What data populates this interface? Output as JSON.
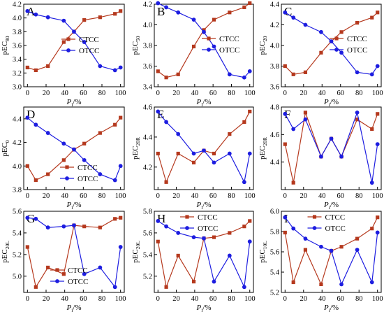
{
  "colors": {
    "ctcc": "#b5391e",
    "otcc": "#1d1de0",
    "axis": "#000000"
  },
  "chart_data": [
    {
      "letter": "A",
      "type": "line",
      "ylabel_main": "pEC",
      "ylabel_sub": "80",
      "xlabel_main": "P",
      "xlabel_sub": "i",
      "xlabel_unit": "/%",
      "xlim": [
        -4,
        104
      ],
      "xticks": [
        0,
        20,
        40,
        60,
        80,
        100
      ],
      "ylim": [
        3.0,
        4.2
      ],
      "yticks": [
        "3.0",
        "3.2",
        "3.4",
        "3.6",
        "3.8",
        "4.0",
        "4.2"
      ],
      "legend": "center-left",
      "x": [
        0,
        9,
        22,
        39,
        50,
        61,
        78,
        94,
        100
      ],
      "series": [
        {
          "name": "CTCC",
          "values": [
            3.28,
            3.24,
            3.3,
            3.65,
            3.8,
            3.97,
            4.01,
            4.06,
            4.1
          ]
        },
        {
          "name": "OTCC",
          "values": [
            4.1,
            4.05,
            4.01,
            3.96,
            3.8,
            3.65,
            3.3,
            3.24,
            3.28
          ]
        }
      ]
    },
    {
      "letter": "B",
      "type": "line",
      "ylabel_main": "pEC",
      "ylabel_sub": "50",
      "xlabel_main": "P",
      "xlabel_sub": "i",
      "xlabel_unit": "/%",
      "xlim": [
        -4,
        104
      ],
      "xticks": [
        0,
        20,
        40,
        60,
        80,
        100
      ],
      "ylim": [
        3.4,
        4.2
      ],
      "yticks": [
        "3.4",
        "3.6",
        "3.8",
        "4.0",
        "4.2"
      ],
      "legend": "center-right",
      "x": [
        0,
        9,
        22,
        39,
        50,
        61,
        78,
        94,
        100
      ],
      "series": [
        {
          "name": "CTCC",
          "values": [
            3.55,
            3.49,
            3.52,
            3.79,
            3.95,
            4.05,
            4.12,
            4.17,
            4.21
          ]
        },
        {
          "name": "OTCC",
          "values": [
            4.21,
            4.17,
            4.12,
            4.05,
            3.93,
            3.79,
            3.52,
            3.49,
            3.55
          ]
        }
      ]
    },
    {
      "letter": "C",
      "type": "line",
      "ylabel_main": "pEC",
      "ylabel_sub": "20",
      "xlabel_main": "P",
      "xlabel_sub": "i",
      "xlabel_unit": "/%",
      "xlim": [
        -4,
        104
      ],
      "xticks": [
        0,
        20,
        40,
        60,
        80,
        100
      ],
      "ylim": [
        3.6,
        4.4
      ],
      "yticks": [
        "3.6",
        "3.8",
        "4.0",
        "4.2",
        "4.4"
      ],
      "legend": "center-right",
      "x": [
        0,
        9,
        22,
        39,
        50,
        61,
        78,
        94,
        100
      ],
      "series": [
        {
          "name": "CTCC",
          "values": [
            3.8,
            3.72,
            3.74,
            3.93,
            4.04,
            4.13,
            4.22,
            4.27,
            4.32
          ]
        },
        {
          "name": "OTCC",
          "values": [
            4.32,
            4.27,
            4.2,
            4.13,
            4.04,
            3.93,
            3.74,
            3.72,
            3.8
          ]
        }
      ]
    },
    {
      "letter": "D",
      "type": "line",
      "ylabel_main": "pEC",
      "ylabel_sub": "0",
      "xlabel_main": "P",
      "xlabel_sub": "i",
      "xlabel_unit": "/%",
      "xlim": [
        -4,
        104
      ],
      "xticks": [
        0,
        20,
        40,
        60,
        80,
        100
      ],
      "ylim": [
        3.8,
        4.5
      ],
      "yticks": [
        "3.8",
        "4.0",
        "4.2",
        "4.4"
      ],
      "legend": "bottom-left",
      "x": [
        0,
        9,
        22,
        39,
        50,
        61,
        78,
        94,
        100
      ],
      "series": [
        {
          "name": "CTCC",
          "values": [
            4.0,
            3.88,
            3.93,
            4.05,
            4.14,
            4.19,
            4.28,
            4.35,
            4.41
          ]
        },
        {
          "name": "OTCC",
          "values": [
            4.41,
            4.35,
            4.28,
            4.19,
            4.14,
            4.05,
            3.93,
            3.88,
            4.0
          ]
        }
      ]
    },
    {
      "letter": "E",
      "type": "line",
      "ylabel_main": "pEC",
      "ylabel_sub": "20R",
      "xlabel_main": "P",
      "xlabel_sub": "i",
      "xlabel_unit": "/%",
      "xlim": [
        -4,
        104
      ],
      "xticks": [
        0,
        20,
        40,
        60,
        80,
        100
      ],
      "ylim": [
        4.05,
        4.6
      ],
      "yticks": [
        "4.2",
        "4.4",
        "4.6"
      ],
      "legend": "none",
      "x": [
        0,
        9,
        22,
        39,
        50,
        61,
        78,
        94,
        100
      ],
      "series": [
        {
          "name": "CTCC",
          "values": [
            4.29,
            4.1,
            4.29,
            4.23,
            4.31,
            4.29,
            4.42,
            4.5,
            4.57
          ]
        },
        {
          "name": "OTCC",
          "values": [
            4.57,
            4.5,
            4.42,
            4.29,
            4.31,
            4.23,
            4.29,
            4.1,
            4.29
          ]
        }
      ]
    },
    {
      "letter": "F",
      "type": "line",
      "ylabel_main": "pEC",
      "ylabel_sub": "20R",
      "xlabel_main": "P",
      "xlabel_sub": "i",
      "xlabel_unit": "/%",
      "xlim": [
        -4,
        104
      ],
      "xticks": [
        0,
        20,
        40,
        60,
        80,
        100
      ],
      "ylim": [
        4.2,
        4.8
      ],
      "yticks": [
        "4.4",
        "4.6",
        "4.8"
      ],
      "legend": "none",
      "x": [
        0,
        9,
        22,
        39,
        50,
        61,
        78,
        94,
        100
      ],
      "series": [
        {
          "name": "CTCC",
          "values": [
            4.53,
            4.25,
            4.76,
            4.44,
            4.57,
            4.44,
            4.71,
            4.64,
            4.75
          ]
        },
        {
          "name": "OTCC",
          "values": [
            4.75,
            4.64,
            4.71,
            4.44,
            4.57,
            4.44,
            4.76,
            4.25,
            4.53
          ]
        }
      ]
    },
    {
      "letter": "G",
      "type": "line",
      "ylabel_main": "pEC",
      "ylabel_sub": "20L",
      "xlabel_main": "P",
      "xlabel_sub": "i",
      "xlabel_unit": "/%",
      "xlim": [
        -4,
        104
      ],
      "xticks": [
        0,
        20,
        40,
        60,
        80,
        100
      ],
      "ylim": [
        4.85,
        5.6
      ],
      "yticks": [
        "5.0",
        "5.2",
        "5.4",
        "5.6"
      ],
      "legend": "bottom-center",
      "x": [
        0,
        9,
        22,
        39,
        50,
        61,
        78,
        94,
        100
      ],
      "series": [
        {
          "name": "CTCC",
          "values": [
            5.27,
            4.9,
            5.08,
            5.02,
            5.47,
            5.46,
            5.45,
            5.53,
            5.54
          ]
        },
        {
          "name": "OTCC",
          "values": [
            5.54,
            5.53,
            5.45,
            5.46,
            5.47,
            5.02,
            5.08,
            4.9,
            5.27
          ]
        }
      ]
    },
    {
      "letter": "H",
      "type": "line",
      "ylabel_main": "pEC",
      "ylabel_sub": "20L",
      "xlabel_main": "P",
      "xlabel_sub": "i",
      "xlabel_unit": "/%",
      "xlim": [
        -4,
        104
      ],
      "xticks": [
        0,
        20,
        40,
        60,
        80,
        100
      ],
      "ylim": [
        5.05,
        5.8
      ],
      "yticks": [
        "5.2",
        "5.4",
        "5.6",
        "5.8"
      ],
      "legend": "top-center",
      "x": [
        0,
        9,
        22,
        39,
        50,
        61,
        78,
        94,
        100
      ],
      "series": [
        {
          "name": "CTCC",
          "values": [
            5.52,
            5.1,
            5.39,
            5.15,
            5.55,
            5.56,
            5.6,
            5.66,
            5.71
          ]
        },
        {
          "name": "OTCC",
          "values": [
            5.71,
            5.66,
            5.6,
            5.56,
            5.55,
            5.15,
            5.39,
            5.1,
            5.52
          ]
        }
      ]
    },
    {
      "letter": "I",
      "type": "line",
      "ylabel_main": "pEC",
      "ylabel_sub": "10L",
      "xlabel_main": "P",
      "xlabel_sub": "i",
      "xlabel_unit": "/%",
      "xlim": [
        -4,
        104
      ],
      "xticks": [
        0,
        20,
        40,
        60,
        80,
        100
      ],
      "ylim": [
        5.2,
        6.0
      ],
      "yticks": [
        "5.2",
        "5.4",
        "5.6",
        "5.8",
        "6.0"
      ],
      "legend": "top-center",
      "x": [
        0,
        9,
        22,
        39,
        50,
        61,
        78,
        94,
        100
      ],
      "series": [
        {
          "name": "CTCC",
          "values": [
            5.79,
            5.3,
            5.62,
            5.28,
            5.61,
            5.65,
            5.73,
            5.83,
            5.94
          ]
        },
        {
          "name": "OTCC",
          "values": [
            5.94,
            5.83,
            5.73,
            5.65,
            5.61,
            5.28,
            5.62,
            5.3,
            5.79
          ]
        }
      ]
    }
  ]
}
